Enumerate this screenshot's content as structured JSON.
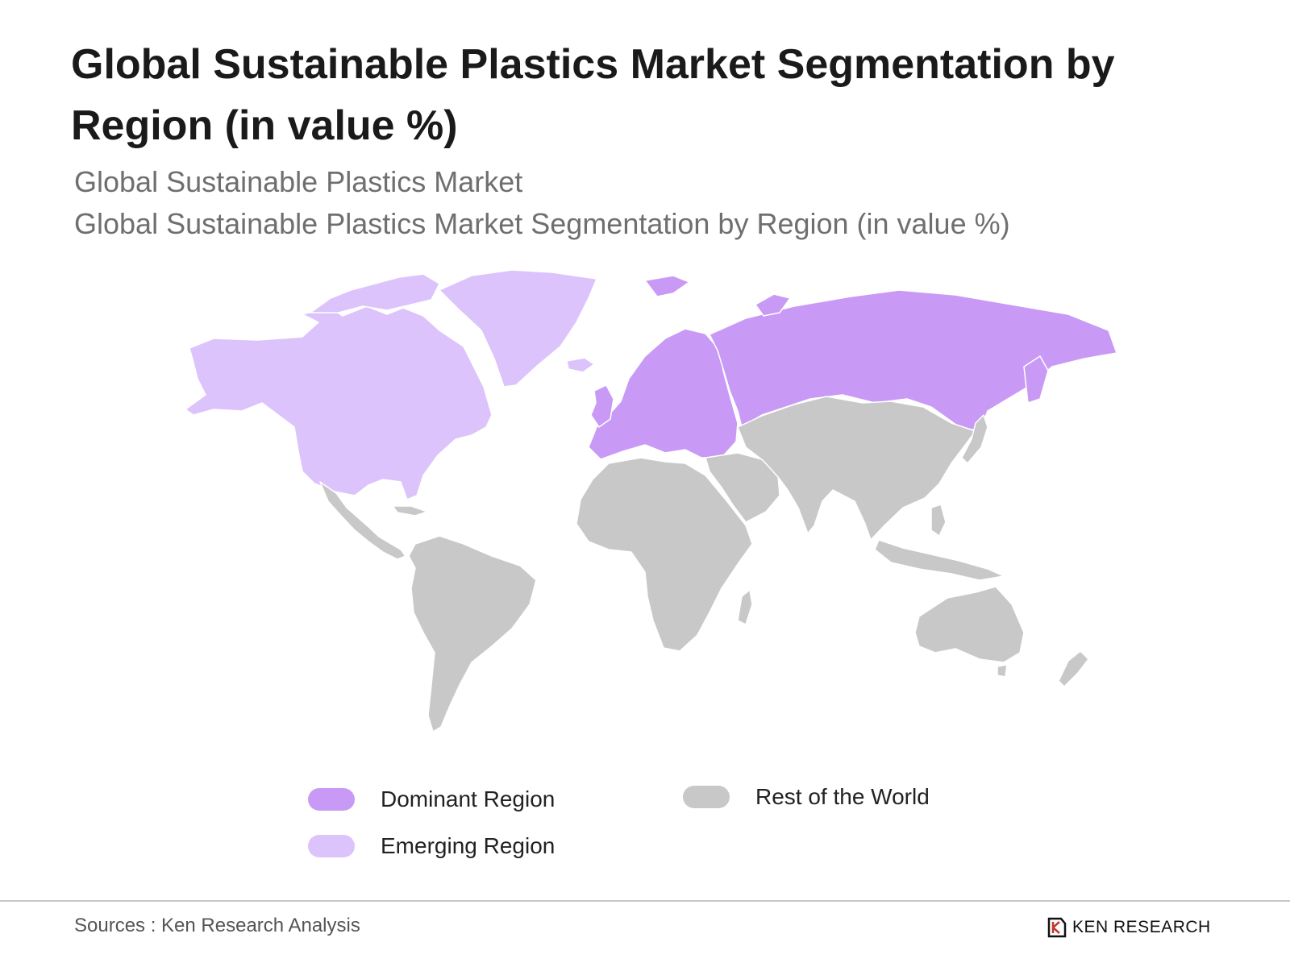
{
  "title": "Global Sustainable Plastics Market Segmentation by Region (in value %)",
  "subtitle_1": "Global Sustainable Plastics Market",
  "subtitle_2": "Global Sustainable Plastics Market Segmentation by Region (in value %)",
  "legend": {
    "dominant": {
      "label": "Dominant Region",
      "color": "#c99af5"
    },
    "emerging": {
      "label": "Emerging Region",
      "color": "#dcc3fb"
    },
    "rest": {
      "label": "Rest of the World",
      "color": "#c8c8c8"
    }
  },
  "regions": {
    "dominant": [
      "Europe",
      "Russia"
    ],
    "emerging": [
      "North America",
      "Greenland"
    ],
    "rest": [
      "Latin America",
      "Africa",
      "Middle East",
      "Asia",
      "Oceania"
    ]
  },
  "source": "Sources : Ken Research Analysis",
  "logo": {
    "text": "KEN RESEARCH",
    "icon": "ken-research-logo-icon"
  }
}
